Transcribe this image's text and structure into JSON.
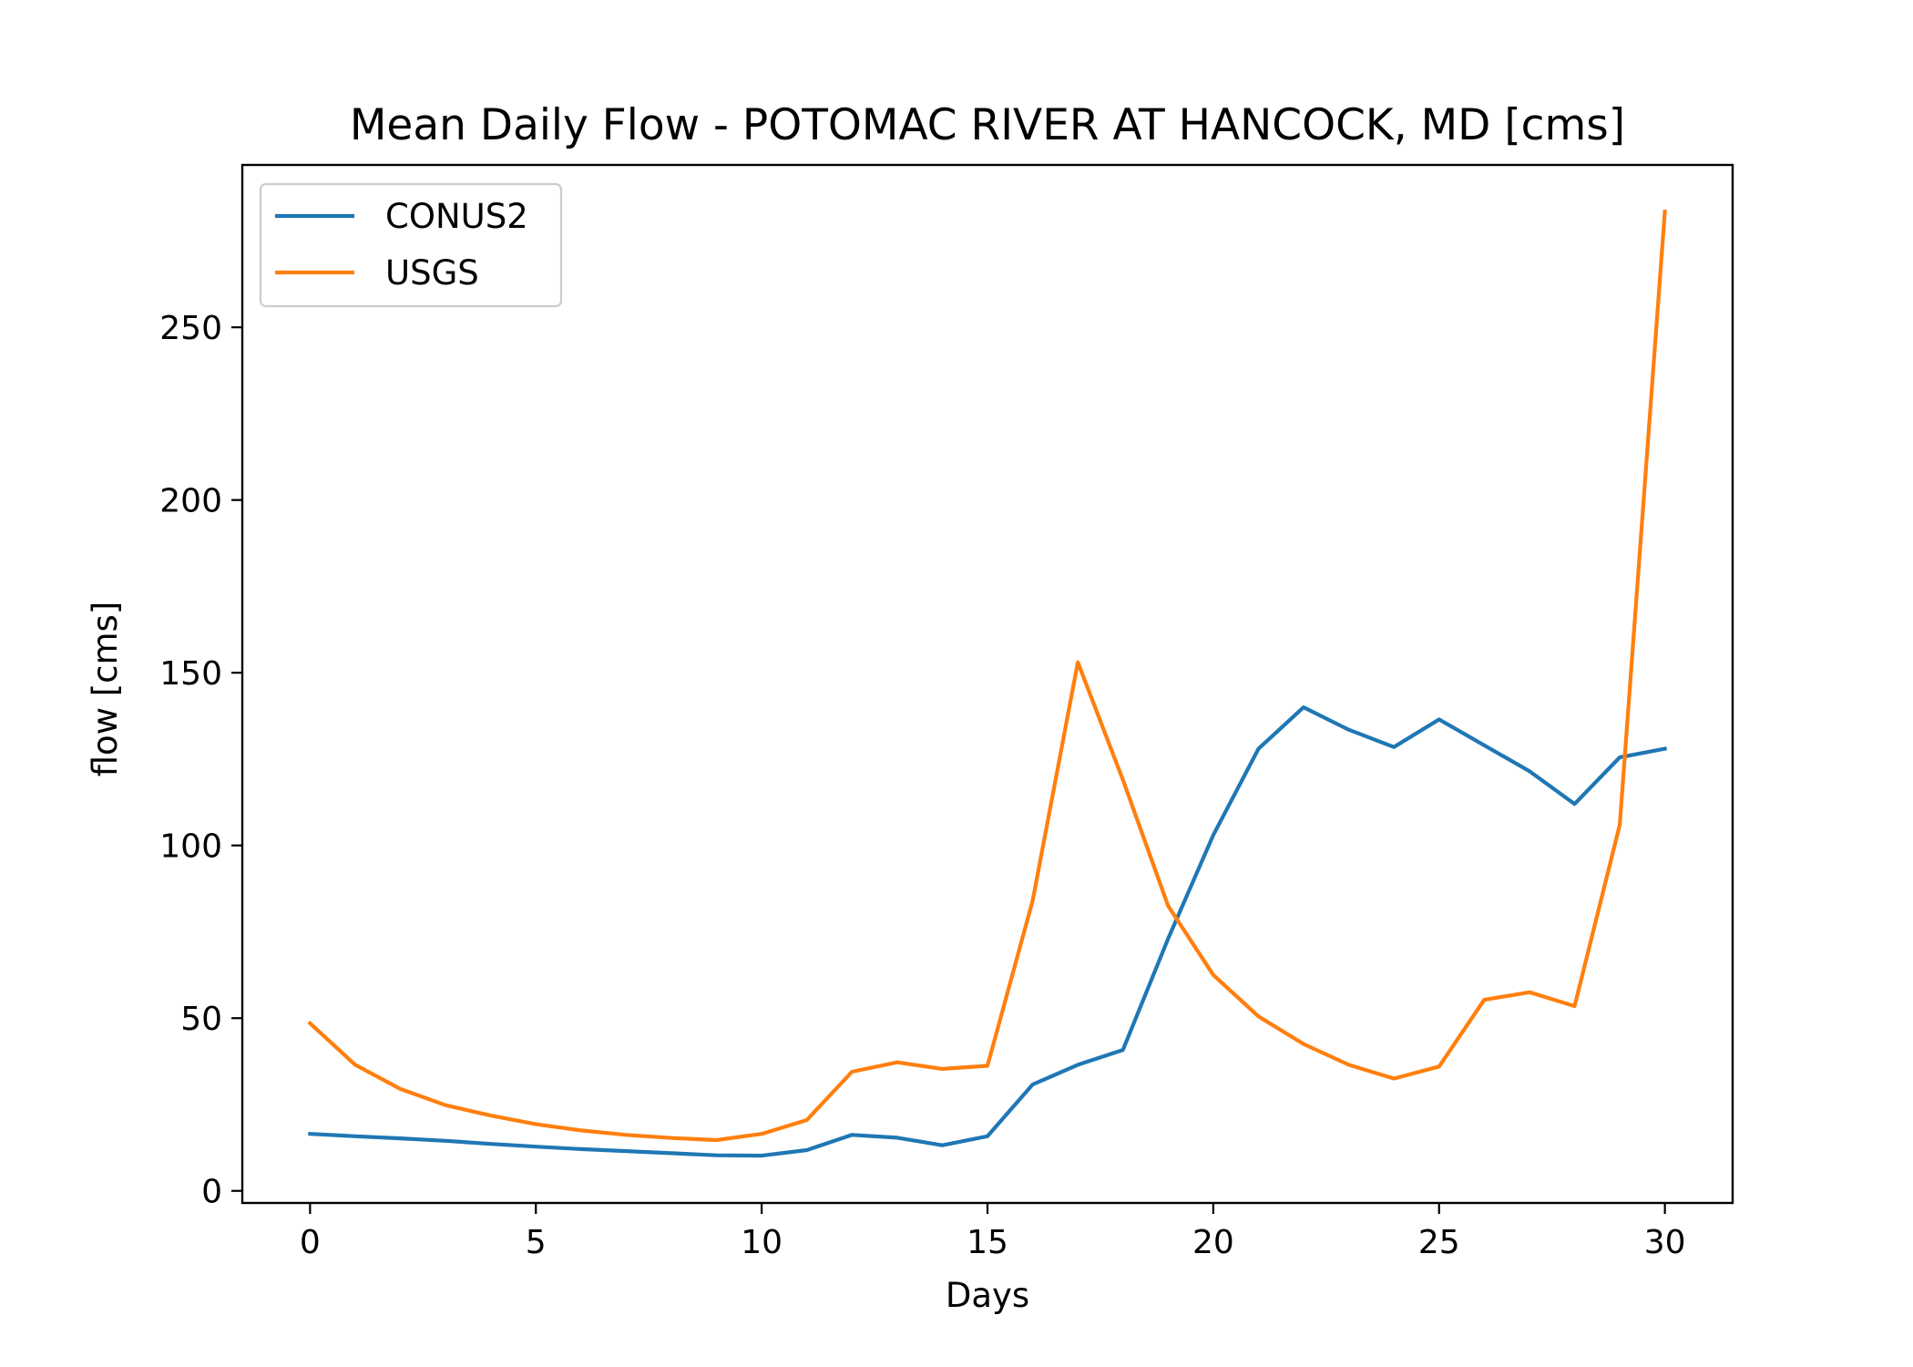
{
  "chart_data": {
    "type": "line",
    "title": "Mean Daily Flow - POTOMAC RIVER AT HANCOCK, MD [cms]",
    "xlabel": "Days",
    "ylabel": "flow [cms]",
    "xlim": [
      -1.5,
      31.5
    ],
    "ylim": [
      -3.5,
      297
    ],
    "xticks": [
      0,
      5,
      10,
      15,
      20,
      25,
      30
    ],
    "yticks": [
      0,
      50,
      100,
      150,
      200,
      250
    ],
    "grid": false,
    "legend_position": "upper-left",
    "x": [
      0,
      1,
      2,
      3,
      4,
      5,
      6,
      7,
      8,
      9,
      10,
      11,
      12,
      13,
      14,
      15,
      16,
      17,
      18,
      19,
      20,
      21,
      22,
      23,
      24,
      25,
      26,
      27,
      28,
      29,
      30
    ],
    "series": [
      {
        "name": "CONUS2",
        "color": "#1f77b4",
        "values": [
          16.5,
          15.8,
          15.2,
          14.5,
          13.6,
          12.8,
          12.1,
          11.5,
          10.9,
          10.3,
          10.2,
          11.8,
          16.2,
          15.4,
          13.2,
          15.8,
          30.8,
          36.5,
          40.8,
          73,
          103,
          128,
          140,
          133.5,
          128.5,
          136.5,
          129,
          121.5,
          112,
          125.5,
          128
        ]
      },
      {
        "name": "USGS",
        "color": "#ff7f0e",
        "values": [
          48.5,
          36.5,
          29.5,
          24.8,
          21.8,
          19.3,
          17.5,
          16.2,
          15.3,
          14.7,
          16.5,
          20.5,
          34.5,
          37.2,
          35.3,
          36.2,
          84,
          153,
          119,
          82.5,
          62.5,
          50.5,
          42.5,
          36.5,
          32.5,
          36,
          55.3,
          57.5,
          53.5,
          106,
          283.5
        ]
      }
    ]
  }
}
